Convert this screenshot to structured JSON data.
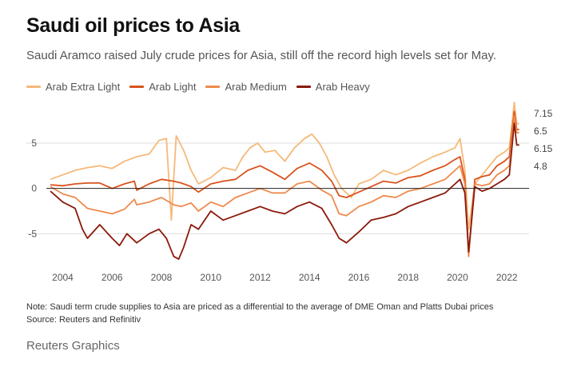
{
  "header": {
    "title": "Saudi oil prices to Asia",
    "subtitle": "Saudi Aramco raised July crude prices for Asia, still off the record high levels set for May."
  },
  "legend": [
    {
      "label": "Arab Extra Light",
      "color": "#f5b97a"
    },
    {
      "label": "Arab Light",
      "color": "#d9531e"
    },
    {
      "label": "Arab Medium",
      "color": "#ef8a4c"
    },
    {
      "label": "Arab Heavy",
      "color": "#8b1a0c"
    }
  ],
  "chart_data": {
    "type": "line",
    "x_ticks": [
      2004,
      2006,
      2008,
      2010,
      2012,
      2014,
      2016,
      2018,
      2020,
      2022
    ],
    "y_ticks": [
      -5,
      0,
      5
    ],
    "ylim": [
      -8.5,
      9.5
    ],
    "xlim": [
      2003.4,
      2022.9
    ],
    "zero_line": true,
    "end_labels": [
      "7.15",
      "6.5",
      "6.15",
      "4.8"
    ],
    "series": [
      {
        "name": "Arab Extra Light",
        "color": "#f5b97a",
        "x": [
          2003.5,
          2004.0,
          2004.5,
          2005.0,
          2005.5,
          2006.0,
          2006.5,
          2007.0,
          2007.5,
          2007.9,
          2008.2,
          2008.4,
          2008.6,
          2008.9,
          2009.2,
          2009.5,
          2010.0,
          2010.5,
          2011.0,
          2011.3,
          2011.6,
          2011.9,
          2012.2,
          2012.6,
          2013.0,
          2013.4,
          2013.8,
          2014.1,
          2014.4,
          2014.7,
          2015.0,
          2015.3,
          2015.7,
          2016.0,
          2016.5,
          2017.0,
          2017.5,
          2018.0,
          2018.5,
          2019.0,
          2019.5,
          2019.9,
          2020.1,
          2020.3,
          2020.45,
          2020.7,
          2021.0,
          2021.3,
          2021.6,
          2021.9,
          2022.1,
          2022.3,
          2022.4,
          2022.5
        ],
        "y": [
          1.0,
          1.5,
          2.0,
          2.3,
          2.5,
          2.2,
          3.0,
          3.5,
          3.8,
          5.3,
          5.5,
          -3.5,
          5.8,
          4.2,
          2.0,
          0.5,
          1.2,
          2.3,
          2.0,
          3.5,
          4.5,
          5.0,
          4.0,
          4.2,
          3.0,
          4.5,
          5.5,
          6.0,
          5.0,
          3.5,
          1.5,
          0.0,
          -1.0,
          0.5,
          1.0,
          2.0,
          1.5,
          2.0,
          2.8,
          3.5,
          4.0,
          4.5,
          5.5,
          2.0,
          -4.5,
          0.5,
          1.5,
          2.5,
          3.5,
          4.0,
          4.5,
          9.5,
          7.15,
          7.15
        ]
      },
      {
        "name": "Arab Light",
        "color": "#d9531e",
        "x": [
          2003.5,
          2004.0,
          2004.5,
          2005.0,
          2005.5,
          2006.0,
          2006.5,
          2006.9,
          2007.0,
          2007.5,
          2008.0,
          2008.5,
          2008.8,
          2009.2,
          2009.5,
          2010.0,
          2010.5,
          2011.0,
          2011.5,
          2012.0,
          2012.5,
          2013.0,
          2013.5,
          2014.0,
          2014.5,
          2014.9,
          2015.2,
          2015.5,
          2016.0,
          2016.5,
          2017.0,
          2017.5,
          2018.0,
          2018.5,
          2019.0,
          2019.5,
          2019.9,
          2020.1,
          2020.3,
          2020.45,
          2020.7,
          2021.0,
          2021.3,
          2021.6,
          2021.9,
          2022.1,
          2022.3,
          2022.4,
          2022.5
        ],
        "y": [
          0.4,
          0.3,
          0.5,
          0.6,
          0.6,
          0.0,
          0.5,
          0.8,
          -0.2,
          0.5,
          1.0,
          0.8,
          0.6,
          0.2,
          -0.4,
          0.5,
          0.8,
          1.0,
          2.0,
          2.5,
          1.8,
          1.0,
          2.2,
          2.8,
          2.0,
          0.8,
          -0.8,
          -1.0,
          -0.4,
          0.2,
          0.8,
          0.6,
          1.2,
          1.4,
          2.0,
          2.5,
          3.2,
          3.5,
          1.0,
          -7.3,
          1.0,
          1.3,
          1.5,
          2.5,
          3.0,
          3.5,
          8.5,
          6.5,
          6.5
        ]
      },
      {
        "name": "Arab Medium",
        "color": "#ef8a4c",
        "x": [
          2003.5,
          2004.0,
          2004.5,
          2005.0,
          2005.5,
          2006.0,
          2006.5,
          2006.9,
          2007.0,
          2007.5,
          2008.0,
          2008.5,
          2008.8,
          2009.2,
          2009.5,
          2010.0,
          2010.5,
          2011.0,
          2011.5,
          2012.0,
          2012.5,
          2013.0,
          2013.5,
          2014.0,
          2014.5,
          2014.9,
          2015.2,
          2015.5,
          2016.0,
          2016.5,
          2017.0,
          2017.5,
          2018.0,
          2018.5,
          2019.0,
          2019.5,
          2019.9,
          2020.1,
          2020.3,
          2020.45,
          2020.7,
          2021.0,
          2021.3,
          2021.6,
          2021.9,
          2022.1,
          2022.3,
          2022.4,
          2022.5
        ],
        "y": [
          0.2,
          -0.6,
          -1.0,
          -2.2,
          -2.5,
          -2.8,
          -2.3,
          -1.2,
          -1.8,
          -1.5,
          -1.0,
          -1.8,
          -2.0,
          -1.6,
          -2.5,
          -1.5,
          -2.0,
          -1.0,
          -0.5,
          0.0,
          -0.5,
          -0.5,
          0.5,
          0.8,
          -0.2,
          -0.8,
          -2.8,
          -3.0,
          -2.0,
          -1.5,
          -0.8,
          -1.0,
          -0.3,
          0.0,
          0.5,
          1.0,
          2.0,
          2.5,
          0.5,
          -7.5,
          0.5,
          0.3,
          0.5,
          1.5,
          2.0,
          2.5,
          8.0,
          6.15,
          6.15
        ]
      },
      {
        "name": "Arab Heavy",
        "color": "#8b1a0c",
        "x": [
          2003.5,
          2004.0,
          2004.5,
          2004.8,
          2005.0,
          2005.5,
          2006.0,
          2006.3,
          2006.6,
          2007.0,
          2007.5,
          2007.9,
          2008.2,
          2008.5,
          2008.7,
          2008.9,
          2009.2,
          2009.5,
          2010.0,
          2010.5,
          2011.0,
          2011.5,
          2012.0,
          2012.5,
          2013.0,
          2013.5,
          2014.0,
          2014.5,
          2014.9,
          2015.2,
          2015.5,
          2016.0,
          2016.5,
          2017.0,
          2017.5,
          2018.0,
          2018.5,
          2019.0,
          2019.5,
          2019.9,
          2020.1,
          2020.3,
          2020.45,
          2020.7,
          2021.0,
          2021.3,
          2021.6,
          2021.9,
          2022.1,
          2022.3,
          2022.4,
          2022.5
        ],
        "y": [
          -0.3,
          -1.5,
          -2.2,
          -4.5,
          -5.5,
          -4.0,
          -5.5,
          -6.3,
          -5.0,
          -6.0,
          -5.0,
          -4.5,
          -5.5,
          -7.5,
          -7.8,
          -6.5,
          -4.0,
          -4.5,
          -2.5,
          -3.5,
          -3.0,
          -2.5,
          -2.0,
          -2.5,
          -2.8,
          -2.0,
          -1.5,
          -2.2,
          -4.0,
          -5.5,
          -6.0,
          -4.8,
          -3.5,
          -3.2,
          -2.8,
          -2.0,
          -1.5,
          -1.0,
          -0.5,
          0.5,
          1.0,
          -0.5,
          -7.0,
          0.2,
          -0.3,
          0.0,
          0.5,
          1.0,
          1.5,
          7.2,
          4.8,
          4.8
        ]
      }
    ],
    "note": "Note: Saudi term crude supplies to Asia are priced as a differential to the average of DME Oman and Platts Dubai prices",
    "source": "Source: Reuters and Refinitiv"
  },
  "footer": {
    "credit": "Reuters Graphics"
  }
}
